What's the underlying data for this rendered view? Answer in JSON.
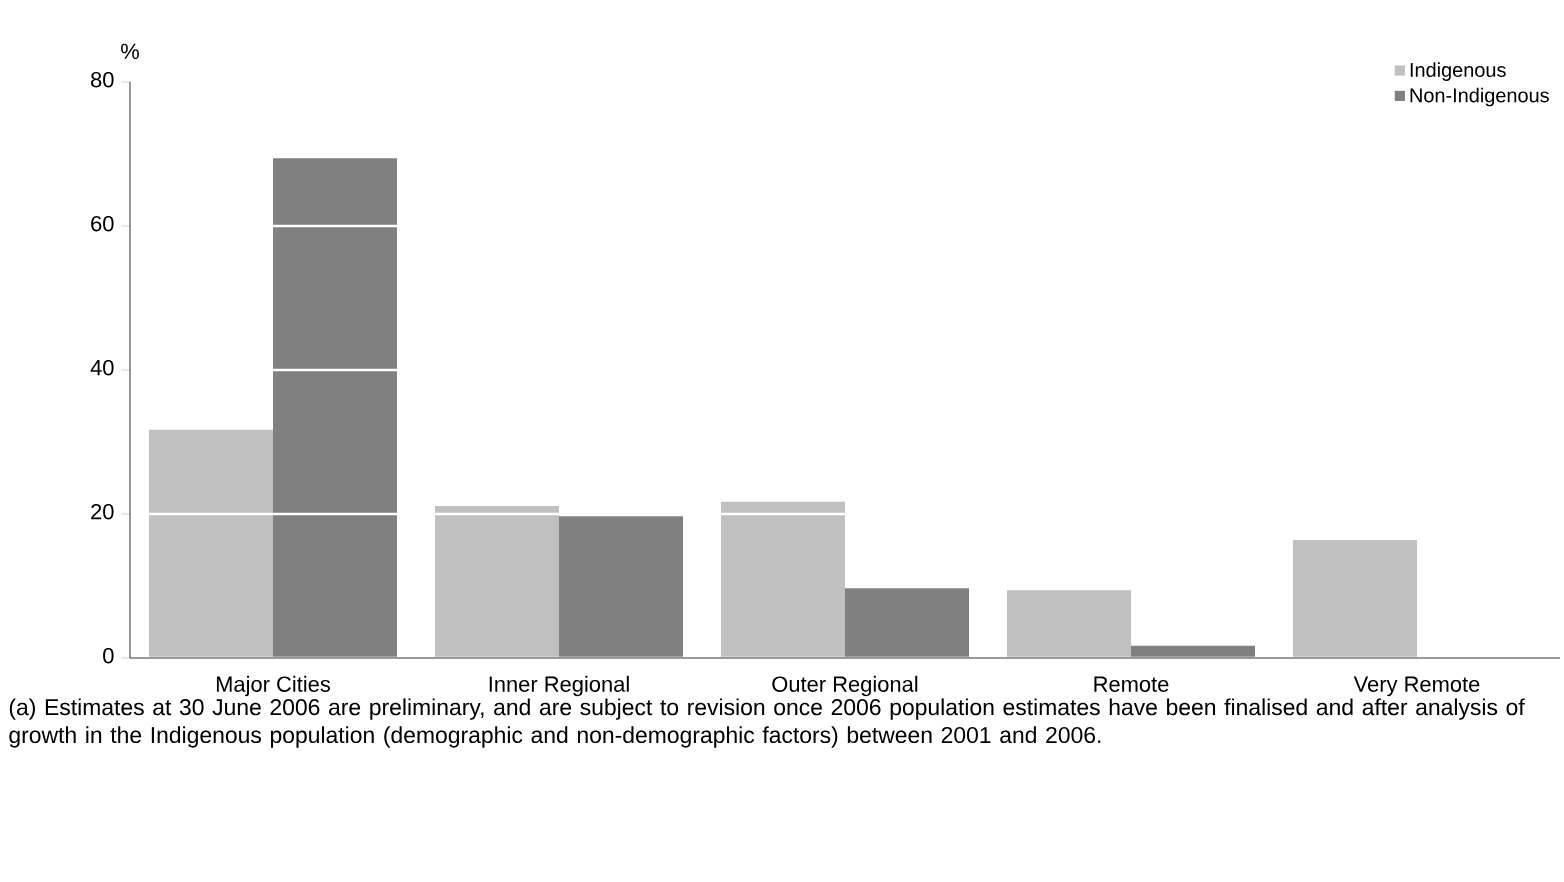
{
  "chart_data": {
    "type": "bar",
    "ylabel": "%",
    "categories": [
      "Major Cities",
      "Inner Regional",
      "Outer Regional",
      "Remote",
      "Very Remote"
    ],
    "series": [
      {
        "name": "Indigenous",
        "color": "#c0c0c0",
        "values": [
          31.7,
          21.1,
          21.7,
          9.4,
          16.4
        ]
      },
      {
        "name": "Non-Indigenous",
        "color": "#808080",
        "values": [
          69.4,
          19.7,
          9.7,
          1.7,
          null
        ]
      }
    ],
    "ylim": [
      0,
      80
    ],
    "yticks": [
      0,
      20,
      40,
      60,
      80
    ],
    "grid": "y",
    "legend": "top right",
    "annotations": [
      "(a) Estimates at 30 June 2006 are preliminary, and are subject to revision once 2006 population estimates have been finalised and after analysis of growth in the Indigenous population (demographic and non-demographic factors) between 2001 and 2006."
    ]
  }
}
